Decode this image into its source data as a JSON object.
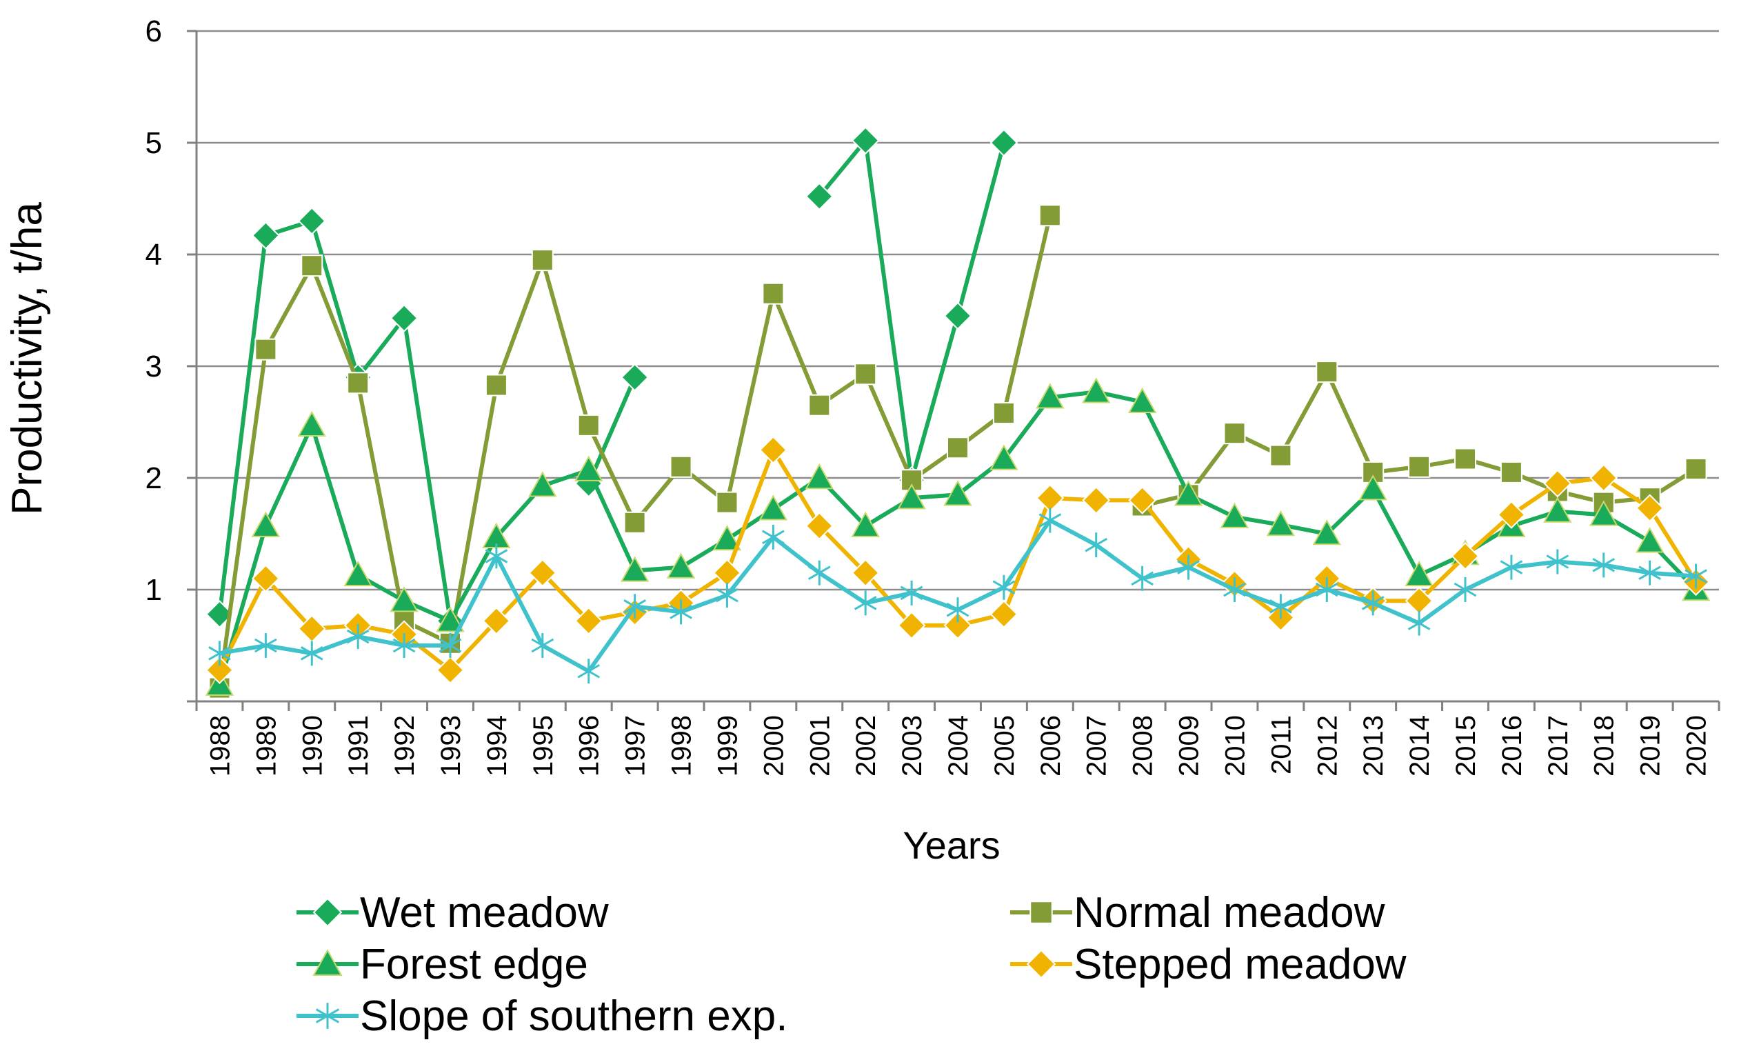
{
  "chart_data": {
    "type": "line",
    "title": "",
    "xlabel": "Years",
    "ylabel": "Productivity, t/ha",
    "ylim": [
      0,
      6
    ],
    "yticks": [
      "1",
      "2",
      "3",
      "4",
      "5",
      "6"
    ],
    "grid": true,
    "legend_position": "bottom",
    "categories": [
      "1988",
      "1989",
      "1990",
      "1991",
      "1992",
      "1993",
      "1994",
      "1995",
      "1996",
      "1997",
      "1998",
      "1999",
      "2000",
      "2001",
      "2002",
      "2003",
      "2004",
      "2005",
      "2006",
      "2007",
      "2008",
      "2009",
      "2010",
      "2011",
      "2012",
      "2013",
      "2014",
      "2015",
      "2016",
      "2017",
      "2018",
      "2019",
      "2020"
    ],
    "series": [
      {
        "name": "Wet meadow",
        "color": "#1aab5a",
        "marker": "diamond",
        "values": [
          0.78,
          4.17,
          4.3,
          2.9,
          3.43,
          0.72,
          null,
          null,
          1.95,
          2.9,
          null,
          null,
          null,
          4.52,
          5.02,
          1.98,
          3.45,
          5.0,
          null,
          null,
          null,
          null,
          null,
          null,
          null,
          null,
          null,
          null,
          null,
          null,
          null,
          null,
          null
        ]
      },
      {
        "name": "Normal meadow",
        "color": "#839c35",
        "marker": "square",
        "values": [
          0.12,
          3.15,
          3.9,
          2.85,
          0.72,
          0.52,
          2.83,
          3.95,
          2.47,
          1.6,
          2.1,
          1.78,
          3.65,
          2.65,
          2.93,
          1.98,
          2.27,
          2.58,
          4.35,
          null,
          1.75,
          1.85,
          2.4,
          2.2,
          2.95,
          2.05,
          2.1,
          2.17,
          2.05,
          1.88,
          1.78,
          1.82,
          2.08
        ]
      },
      {
        "name": "Forest edge",
        "color": "#1aab5a",
        "marker": "triangle",
        "values": [
          0.15,
          1.57,
          2.47,
          1.13,
          0.9,
          0.72,
          1.47,
          1.93,
          2.07,
          1.17,
          1.2,
          1.45,
          1.72,
          2.0,
          1.57,
          1.82,
          1.85,
          2.17,
          2.72,
          2.77,
          2.68,
          1.85,
          1.65,
          1.58,
          1.5,
          1.9,
          1.13,
          1.32,
          1.57,
          1.7,
          1.67,
          1.43,
          1.0
        ]
      },
      {
        "name": "Stepped meadow",
        "color": "#f0b400",
        "marker": "diamond",
        "values": [
          0.28,
          1.1,
          0.65,
          0.68,
          0.6,
          0.28,
          0.72,
          1.15,
          0.72,
          0.8,
          0.88,
          1.15,
          2.25,
          1.57,
          1.15,
          0.68,
          0.68,
          0.78,
          1.82,
          1.8,
          1.8,
          1.27,
          1.05,
          0.75,
          1.1,
          0.9,
          0.9,
          1.3,
          1.67,
          1.95,
          2.0,
          1.73,
          1.07
        ]
      },
      {
        "name": "Slope of southern exp.",
        "color": "#3fc2cc",
        "marker": "asterisk",
        "values": [
          0.43,
          0.5,
          0.43,
          0.58,
          0.5,
          0.5,
          1.3,
          0.5,
          0.27,
          0.85,
          0.8,
          0.95,
          1.47,
          1.15,
          0.88,
          0.97,
          0.82,
          1.02,
          1.62,
          1.4,
          1.1,
          1.2,
          1.0,
          0.85,
          1.0,
          0.88,
          0.7,
          1.0,
          1.2,
          1.25,
          1.22,
          1.15,
          1.12
        ]
      }
    ]
  }
}
